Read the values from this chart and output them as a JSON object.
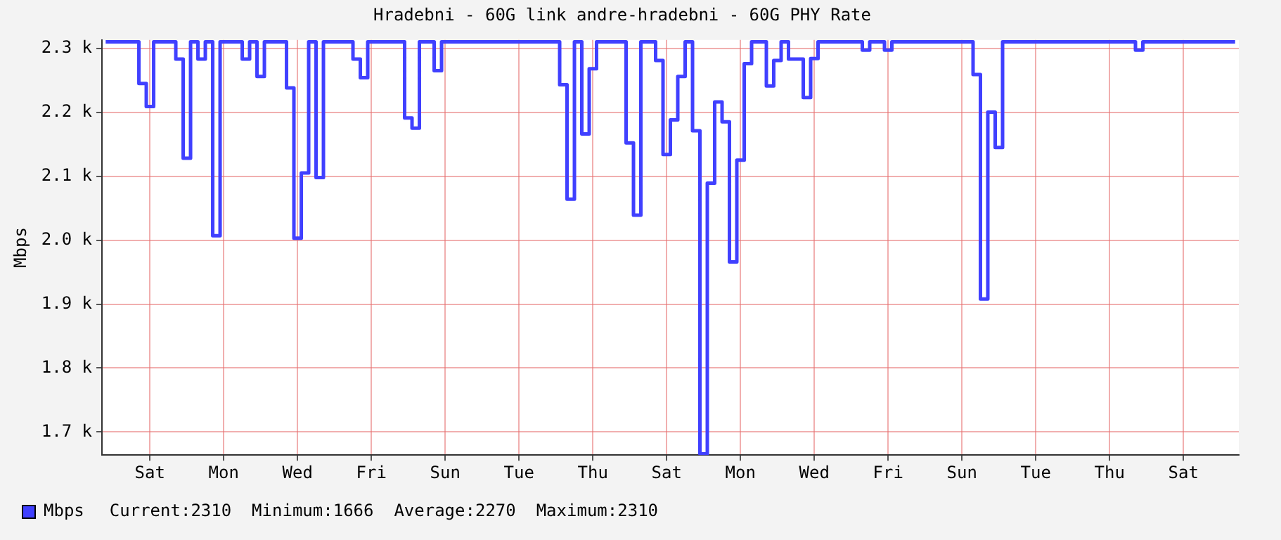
{
  "chart_data": {
    "type": "step",
    "title": "Hradebni - 60G link andre-hradebni - 60G PHY Rate",
    "ylabel": "Mbps",
    "categories": [
      null,
      null,
      null,
      null,
      null,
      null,
      "Sat",
      null,
      null,
      null,
      null,
      null,
      null,
      null,
      null,
      null,
      "Mon",
      null,
      null,
      null,
      null,
      null,
      null,
      null,
      null,
      null,
      "Wed",
      null,
      null,
      null,
      null,
      null,
      null,
      null,
      null,
      null,
      "Fri",
      null,
      null,
      null,
      null,
      null,
      null,
      null,
      null,
      null,
      "Sun",
      null,
      null,
      null,
      null,
      null,
      null,
      null,
      null,
      null,
      "Tue",
      null,
      null,
      null,
      null,
      null,
      null,
      null,
      null,
      null,
      "Thu",
      null,
      null,
      null,
      null,
      null,
      null,
      null,
      null,
      null,
      "Sat",
      null,
      null,
      null,
      null,
      null,
      null,
      null,
      null,
      null,
      "Mon",
      null,
      null,
      null,
      null,
      null,
      null,
      null,
      null,
      null,
      "Wed",
      null,
      null,
      null,
      null,
      null,
      null,
      null,
      null,
      null,
      "Fri",
      null,
      null,
      null,
      null,
      null,
      null,
      null,
      null,
      null,
      "Sun",
      null,
      null,
      null,
      null,
      null,
      null,
      null,
      null,
      null,
      "Tue",
      null,
      null,
      null,
      null,
      null,
      null,
      null,
      null,
      null,
      "Thu",
      null,
      null,
      null,
      null,
      null,
      null,
      null,
      null,
      null,
      "Sat",
      null,
      null,
      null,
      null,
      null,
      null,
      null
    ],
    "series": [
      {
        "name": "Mbps",
        "color": "#4040ff",
        "values": [
          2310,
          2310,
          2310,
          2310,
          2310,
          2245,
          2209,
          2310,
          2310,
          2310,
          2283,
          2128,
          2310,
          2283,
          2310,
          2007,
          2310,
          2310,
          2310,
          2283,
          2310,
          2256,
          2310,
          2310,
          2310,
          2238,
          2003,
          2105,
          2310,
          2098,
          2310,
          2310,
          2310,
          2310,
          2283,
          2254,
          2310,
          2310,
          2310,
          2310,
          2310,
          2191,
          2175,
          2310,
          2310,
          2265,
          2310,
          2310,
          2310,
          2310,
          2310,
          2310,
          2310,
          2310,
          2310,
          2310,
          2310,
          2310,
          2310,
          2310,
          2310,
          2310,
          2243,
          2064,
          2310,
          2166,
          2268,
          2310,
          2310,
          2310,
          2310,
          2152,
          2039,
          2310,
          2310,
          2281,
          2134,
          2188,
          2256,
          2310,
          2171,
          1666,
          2089,
          2216,
          2185,
          1966,
          2125,
          2276,
          2310,
          2310,
          2241,
          2281,
          2310,
          2283,
          2283,
          2223,
          2284,
          2310,
          2310,
          2310,
          2310,
          2310,
          2310,
          2297,
          2310,
          2310,
          2297,
          2310,
          2310,
          2310,
          2310,
          2310,
          2310,
          2310,
          2310,
          2310,
          2310,
          2310,
          2259,
          1908,
          2200,
          2145,
          2310,
          2310,
          2310,
          2310,
          2310,
          2310,
          2310,
          2310,
          2310,
          2310,
          2310,
          2310,
          2310,
          2310,
          2310,
          2310,
          2310,
          2310,
          2297,
          2310,
          2310,
          2310,
          2310,
          2310,
          2310,
          2310,
          2310,
          2310,
          2310,
          2310,
          2310,
          2310
        ]
      }
    ],
    "ylim": [
      1664,
      2313
    ],
    "yticks": [
      {
        "value": 1700,
        "label": "1.7 k"
      },
      {
        "value": 1800,
        "label": "1.8 k"
      },
      {
        "value": 1900,
        "label": "1.9 k"
      },
      {
        "value": 2000,
        "label": "2.0 k"
      },
      {
        "value": 2100,
        "label": "2.1 k"
      },
      {
        "value": 2200,
        "label": "2.2 k"
      },
      {
        "value": 2300,
        "label": "2.3 k"
      }
    ],
    "grid": true,
    "legend": "bottom",
    "marker": "none",
    "line_style": "solid",
    "annotations": [
      "Current:2310  Minimum:1666  Average:2270  Maximum:2310"
    ]
  }
}
